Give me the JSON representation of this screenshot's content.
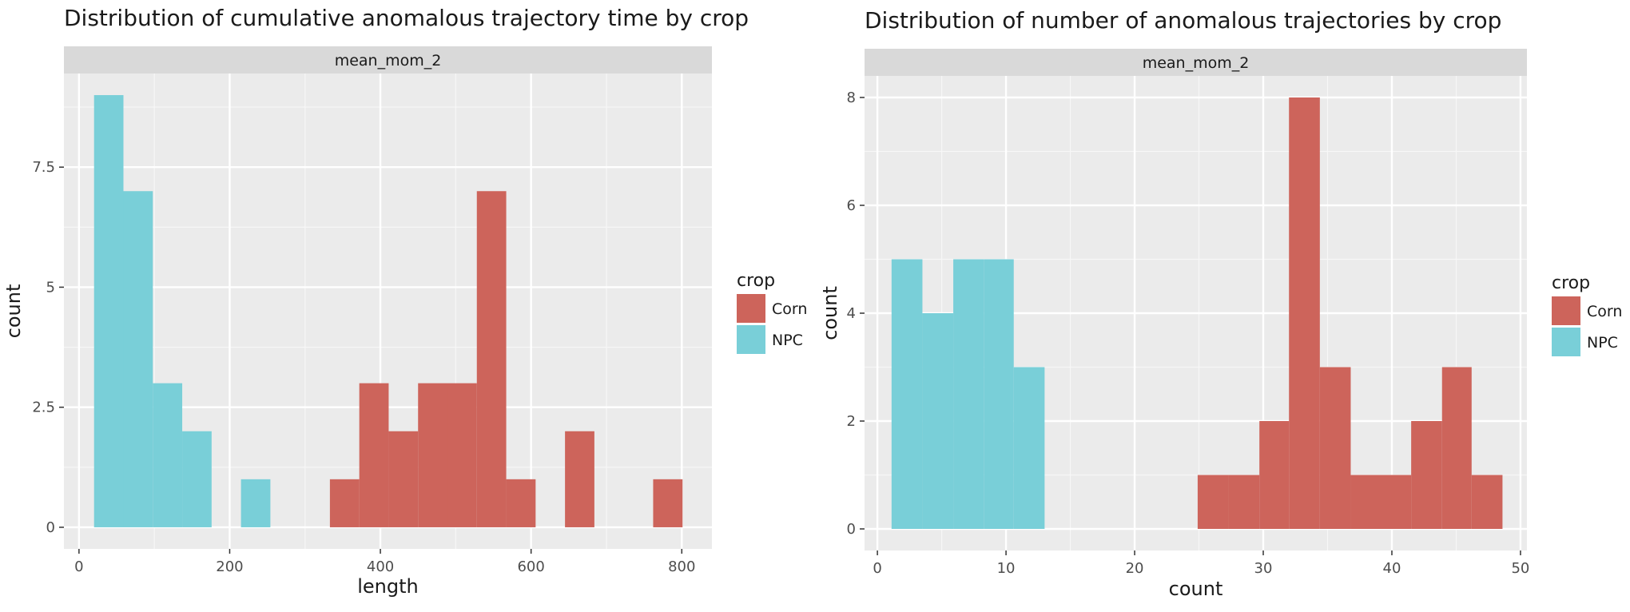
{
  "chart_data": [
    {
      "type": "bar",
      "title": "Distribution of cumulative anomalous trajectory time by crop",
      "facet_label": "mean_mom_2",
      "xlabel": "length",
      "ylabel": "count",
      "xlim": [
        -20,
        840
      ],
      "ylim": [
        -0.45,
        9.45
      ],
      "x_ticks": [
        0,
        200,
        400,
        600,
        800
      ],
      "y_ticks": [
        0,
        2.5,
        5,
        7.5
      ],
      "y_tick_labels": [
        "0",
        "2.5",
        "5",
        "7.5"
      ],
      "grid": true,
      "legend_title": "crop",
      "legend_position": "right",
      "series": [
        {
          "name": "Corn",
          "color": "#CD645B",
          "bins": [
            {
              "x0": 333,
              "x1": 372,
              "count": 1
            },
            {
              "x0": 372,
              "x1": 411,
              "count": 3
            },
            {
              "x0": 411,
              "x1": 450,
              "count": 2
            },
            {
              "x0": 450,
              "x1": 489,
              "count": 3
            },
            {
              "x0": 489,
              "x1": 528,
              "count": 3
            },
            {
              "x0": 528,
              "x1": 567,
              "count": 7
            },
            {
              "x0": 567,
              "x1": 606,
              "count": 1
            },
            {
              "x0": 645,
              "x1": 684,
              "count": 2
            },
            {
              "x0": 762,
              "x1": 801,
              "count": 1
            }
          ]
        },
        {
          "name": "NPC",
          "color": "#79CFD8",
          "bins": [
            {
              "x0": 20,
              "x1": 59,
              "count": 9
            },
            {
              "x0": 59,
              "x1": 98,
              "count": 7
            },
            {
              "x0": 98,
              "x1": 137,
              "count": 3
            },
            {
              "x0": 137,
              "x1": 176,
              "count": 2
            },
            {
              "x0": 215,
              "x1": 254,
              "count": 1
            }
          ]
        }
      ]
    },
    {
      "type": "bar",
      "title": "Distribution of number of anomalous trajectories by crop",
      "facet_label": "mean_mom_2",
      "xlabel": "count",
      "ylabel": "count",
      "xlim": [
        -1,
        50.5
      ],
      "ylim": [
        -0.4,
        8.4
      ],
      "x_ticks": [
        0,
        10,
        20,
        30,
        40,
        50
      ],
      "y_ticks": [
        0,
        2,
        4,
        6,
        8
      ],
      "y_tick_labels": [
        "0",
        "2",
        "4",
        "6",
        "8"
      ],
      "grid": true,
      "legend_title": "crop",
      "legend_position": "right",
      "series": [
        {
          "name": "Corn",
          "color": "#CD645B",
          "bins": [
            {
              "x0": 24.9,
              "x1": 27.3,
              "count": 1
            },
            {
              "x0": 27.3,
              "x1": 29.7,
              "count": 1
            },
            {
              "x0": 29.7,
              "x1": 32.0,
              "count": 2
            },
            {
              "x0": 32.0,
              "x1": 34.4,
              "count": 8
            },
            {
              "x0": 34.4,
              "x1": 36.8,
              "count": 3
            },
            {
              "x0": 36.8,
              "x1": 39.1,
              "count": 1
            },
            {
              "x0": 39.1,
              "x1": 41.5,
              "count": 1
            },
            {
              "x0": 41.5,
              "x1": 43.9,
              "count": 2
            },
            {
              "x0": 43.9,
              "x1": 46.2,
              "count": 3
            },
            {
              "x0": 46.2,
              "x1": 48.6,
              "count": 1
            }
          ]
        },
        {
          "name": "NPC",
          "color": "#79CFD8",
          "bins": [
            {
              "x0": 1.1,
              "x1": 3.5,
              "count": 5
            },
            {
              "x0": 3.5,
              "x1": 5.9,
              "count": 4
            },
            {
              "x0": 5.9,
              "x1": 8.3,
              "count": 5
            },
            {
              "x0": 8.3,
              "x1": 10.6,
              "count": 5
            },
            {
              "x0": 10.6,
              "x1": 13.0,
              "count": 3
            }
          ]
        }
      ]
    }
  ]
}
